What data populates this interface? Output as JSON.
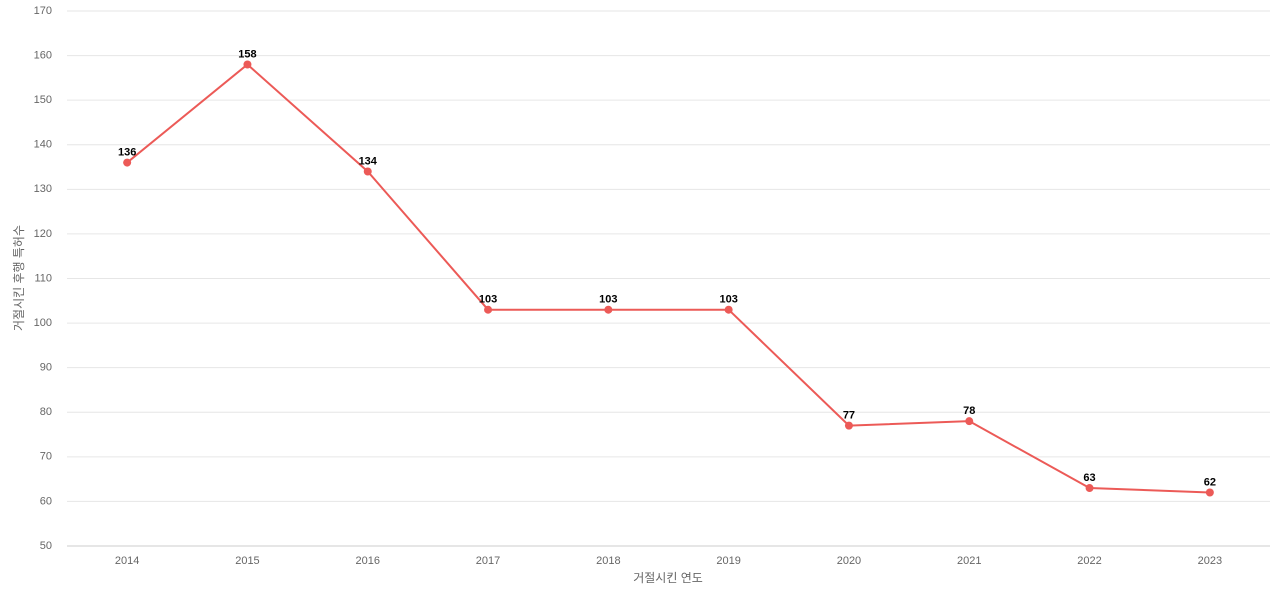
{
  "chart_data": {
    "type": "line",
    "x_label": "거절시킨 연도",
    "y_label": "거절시킨 후행 특허수",
    "categories": [
      "2014",
      "2015",
      "2016",
      "2017",
      "2018",
      "2019",
      "2020",
      "2021",
      "2022",
      "2023"
    ],
    "series": [
      {
        "name": "거절시킨 후행 특허수",
        "color": "#ec5a57",
        "values": [
          136,
          158,
          134,
          103,
          103,
          103,
          77,
          78,
          63,
          62
        ]
      }
    ],
    "ylim": [
      50,
      170
    ],
    "yticks": [
      50,
      60,
      70,
      80,
      90,
      100,
      110,
      120,
      130,
      140,
      150,
      160,
      170
    ],
    "grid": true
  }
}
